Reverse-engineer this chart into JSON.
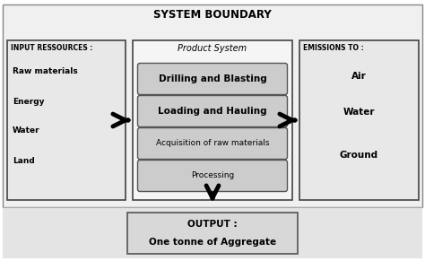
{
  "title": "SYSTEM BOUNDARY",
  "white": "#ffffff",
  "light_gray_bg": "#f0f0f0",
  "box_fill": "#e8e8e8",
  "center_fill": "#f5f5f5",
  "process_fill": "#cccccc",
  "bottom_fill": "#e0e0e0",
  "input_title": "INPUT RESSOURCES :",
  "input_items": [
    "Raw materials",
    "Energy",
    "Water",
    "Land"
  ],
  "center_title": "Product System",
  "center_boxes": [
    "Drilling and Blasting",
    "Loading and Hauling",
    "Acquisition of raw materials",
    "Processing"
  ],
  "center_bold": [
    true,
    true,
    false,
    false
  ],
  "emissions_title": "EMISSIONS TO :",
  "emissions_items": [
    "Air",
    "Water",
    "Ground"
  ],
  "output_line1": "OUTPUT :",
  "output_line2": "One tonne of Aggregate"
}
